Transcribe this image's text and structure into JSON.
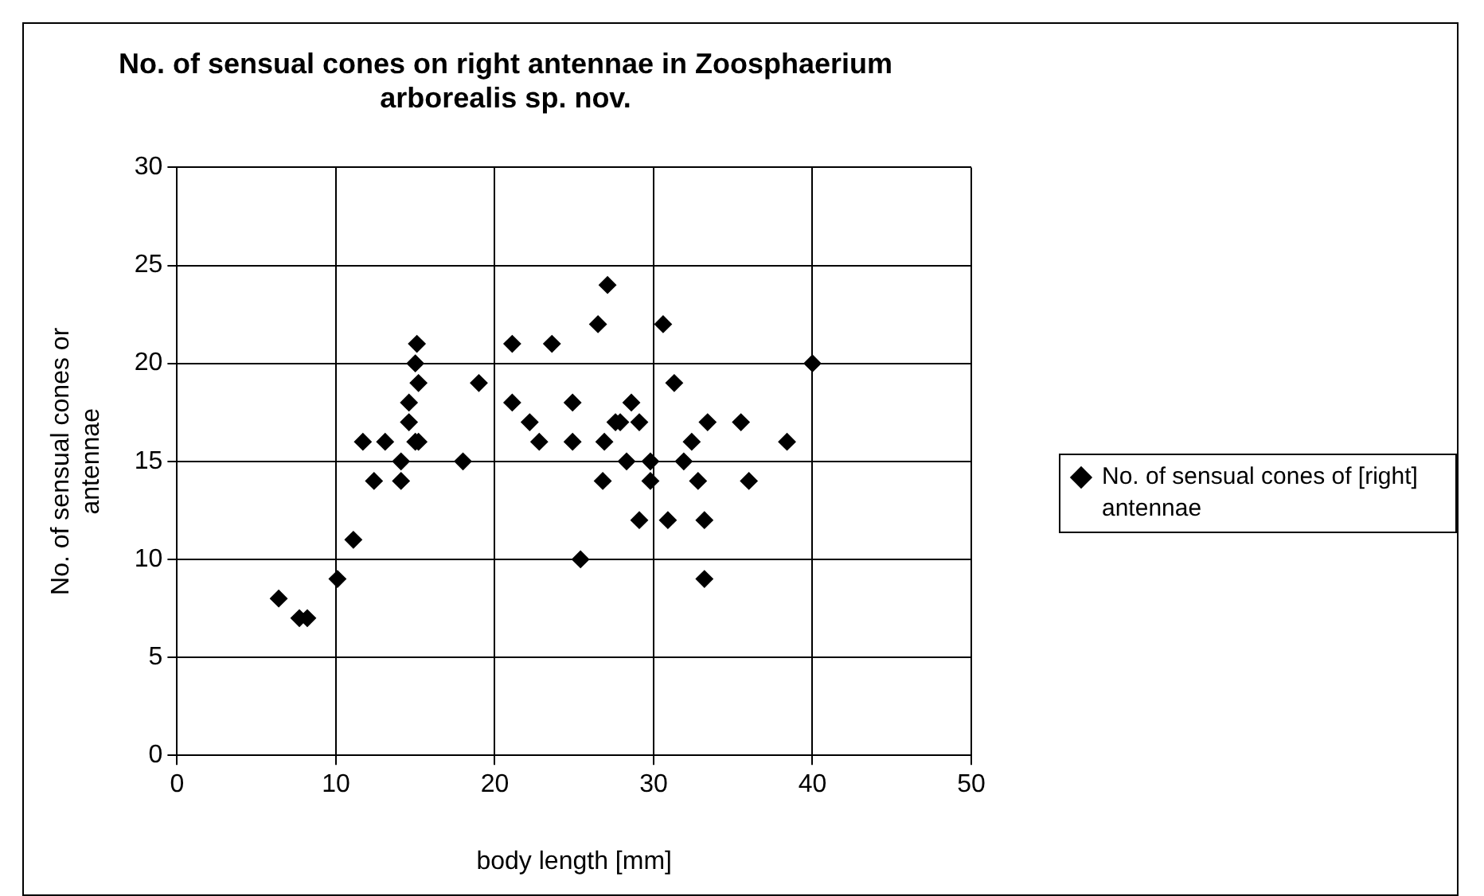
{
  "chart_data": {
    "type": "scatter",
    "title": "No. of sensual cones on right antennae in Zoosphaerium arborealis sp. nov.",
    "xlabel": "body length [mm]",
    "ylabel": "No. of sensual cones or antennae",
    "xlim": [
      0,
      50
    ],
    "xticks": [
      0,
      10,
      20,
      30,
      40,
      50
    ],
    "ylim": [
      0,
      30
    ],
    "yticks": [
      0,
      5,
      10,
      15,
      20,
      25,
      30
    ],
    "grid": true,
    "legend": "right",
    "marker": "diamond",
    "series": [
      {
        "name": "No. of sensual cones of [right] antennae",
        "color": "#000000",
        "x": [
          6.4,
          7.7,
          8.2,
          10.1,
          11.1,
          11.7,
          12.4,
          13.1,
          14.1,
          14.1,
          14.6,
          14.6,
          15.0,
          15.2,
          15.0,
          15.1,
          15.2,
          18.0,
          19.0,
          21.1,
          21.1,
          22.2,
          22.8,
          23.6,
          24.9,
          24.9,
          25.4,
          26.5,
          26.8,
          26.9,
          27.1,
          27.6,
          27.9,
          28.3,
          28.6,
          29.1,
          29.1,
          29.8,
          29.8,
          30.6,
          30.9,
          31.3,
          31.9,
          32.4,
          32.8,
          33.2,
          33.2,
          33.4,
          35.5,
          36.0,
          38.4,
          40.0
        ],
        "values": [
          8,
          7,
          7,
          9,
          11,
          16,
          14,
          16,
          15,
          14,
          17,
          18,
          16,
          16,
          20,
          21,
          19,
          15,
          19,
          21,
          18,
          17,
          16,
          21,
          18,
          16,
          10,
          22,
          14,
          16,
          24,
          17,
          17,
          15,
          18,
          17,
          12,
          15,
          14,
          22,
          12,
          19,
          15,
          16,
          14,
          12,
          9,
          17,
          17,
          14,
          16,
          20
        ]
      }
    ]
  }
}
